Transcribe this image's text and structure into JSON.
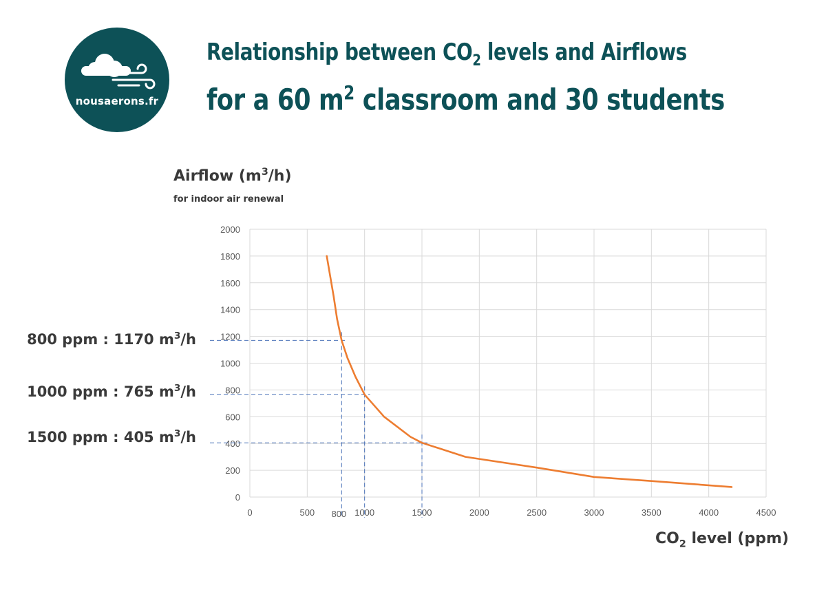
{
  "logo": {
    "text": "nousaerons.fr"
  },
  "title": {
    "line1_pre": "Relationship between CO",
    "line1_sub": "2",
    "line1_post": " levels and Airflows",
    "line2_pre": "for a 60 m",
    "line2_sup": "2",
    "line2_post": " classroom and 30 students"
  },
  "axis": {
    "ylabel_pre": "Airflow (m",
    "ylabel_sup": "3",
    "ylabel_post": "/h)",
    "ysub": "for indoor air renewal",
    "xlabel_pre": "CO",
    "xlabel_sub": "2",
    "xlabel_post": " level (ppm)"
  },
  "annotations": [
    {
      "pre": "800 ppm : 1170 m",
      "sup": "3",
      "post": "/h",
      "x": 800,
      "y": 1170
    },
    {
      "pre": "1000 ppm : 765 m",
      "sup": "3",
      "post": "/h",
      "x": 1000,
      "y": 765
    },
    {
      "pre": "1500 ppm : 405 m",
      "sup": "3",
      "post": "/h",
      "x": 1500,
      "y": 405
    }
  ],
  "colors": {
    "brand": "#0d5157",
    "line": "#ed7d31",
    "guide": "#4a72b8",
    "grid": "#d9d9d9",
    "text": "#3a3a3a",
    "tick": "#595959"
  },
  "chart_data": {
    "type": "line",
    "xlim": [
      0,
      4500
    ],
    "ylim": [
      0,
      2000
    ],
    "xticks": [
      0,
      500,
      1000,
      1500,
      2000,
      2500,
      3000,
      3500,
      4000,
      4500
    ],
    "yticks": [
      0,
      200,
      400,
      600,
      800,
      1000,
      1200,
      1400,
      1600,
      1800,
      2000
    ],
    "extra_xtick": 800,
    "grid": true,
    "series": [
      {
        "x": [
          670,
          700,
          730,
          760,
          800,
          850,
          920,
          1000,
          1170,
          1400,
          1500,
          1880,
          2500,
          3000,
          3500,
          4200
        ],
        "values": [
          1800,
          1650,
          1500,
          1330,
          1170,
          1040,
          900,
          765,
          600,
          450,
          405,
          300,
          220,
          150,
          120,
          75
        ]
      }
    ]
  }
}
